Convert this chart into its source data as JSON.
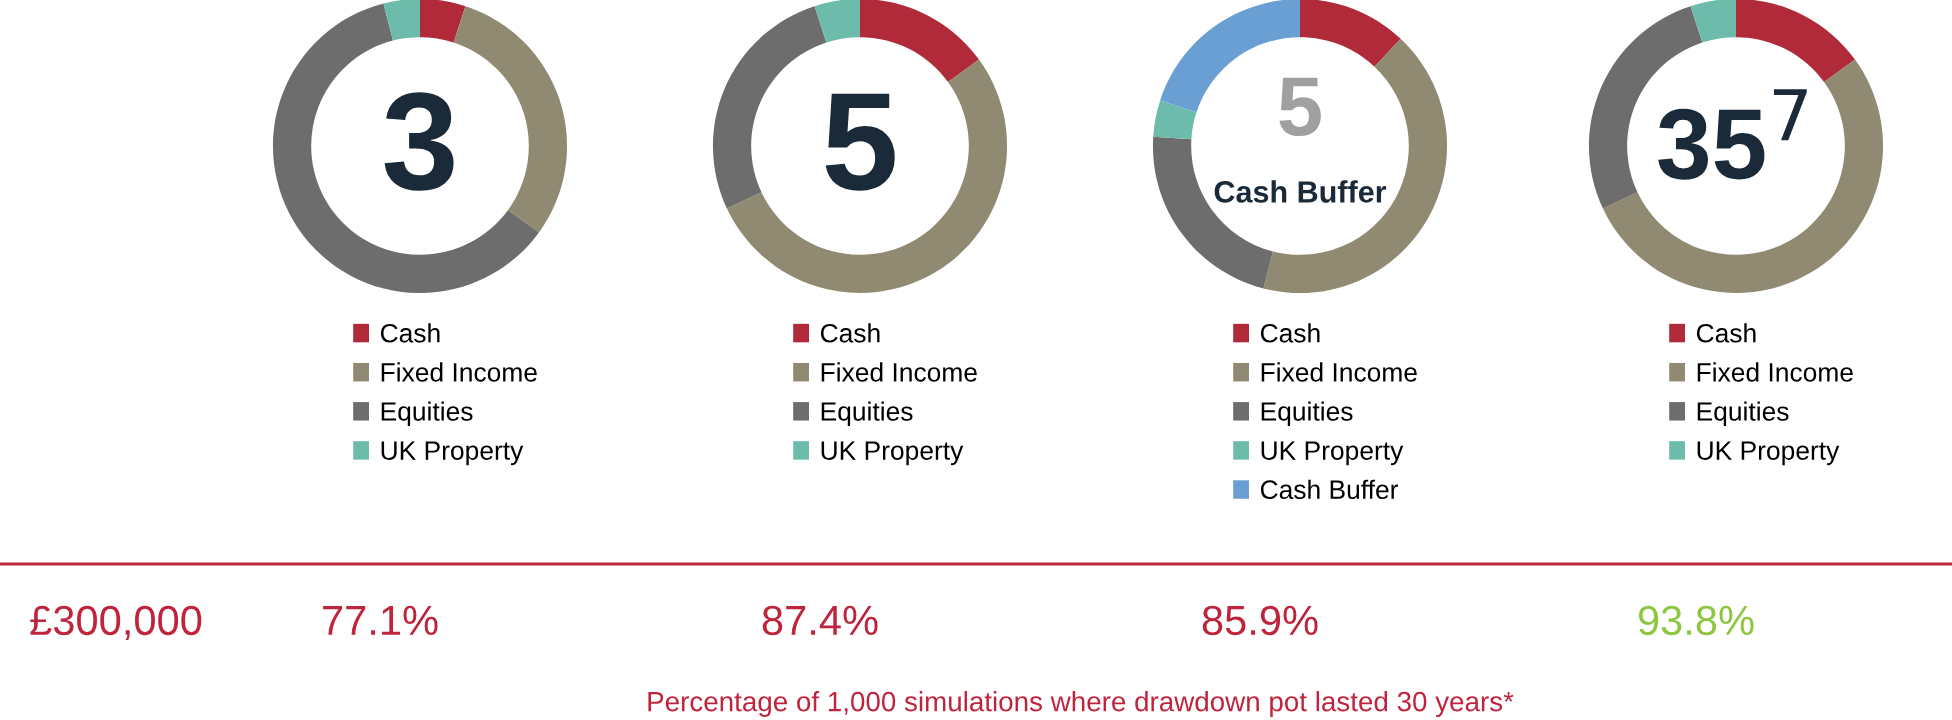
{
  "chart_data": [
    {
      "type": "donut",
      "categories": [
        "Cash",
        "Fixed Income",
        "Equities",
        "UK Property"
      ],
      "values": [
        5,
        30,
        61,
        4
      ],
      "colors": [
        "#b02a3a",
        "#918a72",
        "#6d6d6d",
        "#6dbcab"
      ],
      "legend": "bottom",
      "annotations": [
        "3",
        "77.1%"
      ]
    },
    {
      "type": "donut",
      "categories": [
        "Cash",
        "Fixed Income",
        "Equities",
        "UK Property"
      ],
      "values": [
        15,
        53,
        27,
        5
      ],
      "colors": [
        "#b02a3a",
        "#918a72",
        "#6d6d6d",
        "#6dbcab"
      ],
      "legend": "bottom",
      "annotations": [
        "5",
        "87.4%"
      ]
    },
    {
      "type": "donut",
      "categories": [
        "Cash",
        "Fixed Income",
        "Equities",
        "UK Property",
        "Cash Buffer"
      ],
      "values": [
        12,
        42,
        22,
        4,
        20
      ],
      "colors": [
        "#b02a3a",
        "#918a72",
        "#6d6d6d",
        "#6dbcab",
        "#6a9fd4"
      ],
      "legend": "bottom",
      "annotations": [
        "5",
        "Cash Buffer",
        "85.9%"
      ]
    },
    {
      "type": "donut",
      "categories": [
        "Cash",
        "Fixed Income",
        "Equities",
        "UK Property"
      ],
      "values": [
        15,
        53,
        27,
        5
      ],
      "colors": [
        "#b02a3a",
        "#918a72",
        "#6d6d6d",
        "#6dbcab"
      ],
      "legend": "bottom",
      "annotations": [
        "35$^{7}$",
        "93.8%"
      ]
    },
    {
      "type": "other",
      "annotations": [
        "£300,000",
        "Percentage of 1,000 simulations where drawdown pot lasted 30 years*"
      ]
    }
  ]
}
